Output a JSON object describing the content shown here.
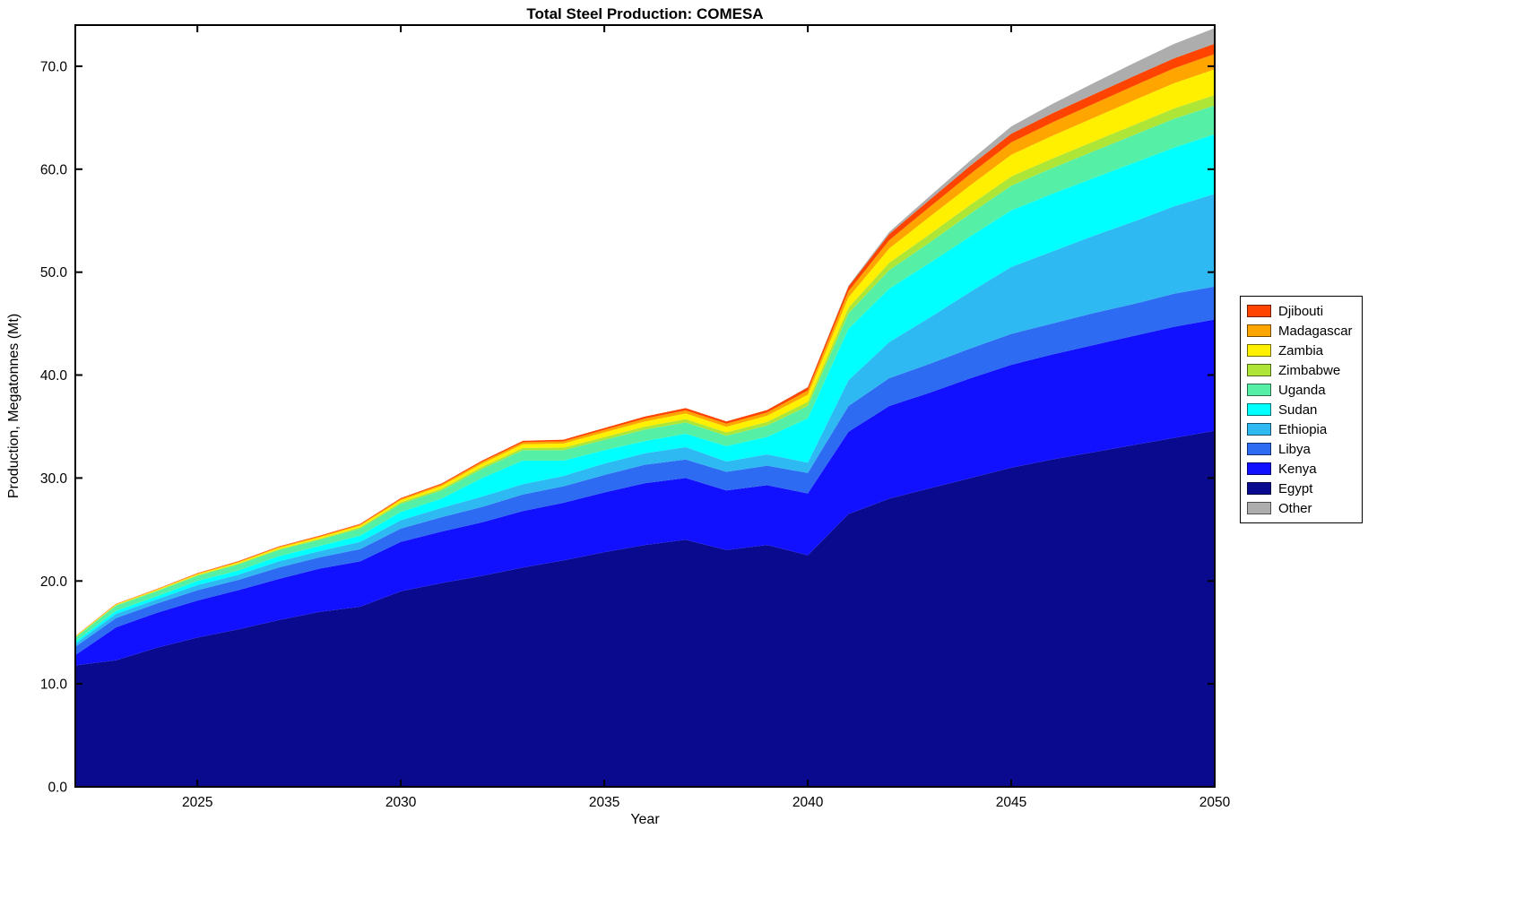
{
  "chart_data": {
    "type": "area",
    "stacked": true,
    "title": "Total Steel Production: COMESA",
    "xlabel": "Year",
    "ylabel": "Production, Megatonnes (Mt)",
    "xlim": [
      2022,
      2050
    ],
    "ylim": [
      0,
      74
    ],
    "grid": false,
    "legend_position": "right-outside",
    "xticks": [
      2025,
      2030,
      2035,
      2040,
      2045,
      2050
    ],
    "xtick_labels": [
      "2025",
      "2030",
      "2035",
      "2040",
      "2045",
      "2050"
    ],
    "yticks": [
      0,
      10,
      20,
      30,
      40,
      50,
      60,
      70
    ],
    "ytick_labels": [
      "0.0",
      "10.0",
      "20.0",
      "30.0",
      "40.0",
      "50.0",
      "60.0",
      "70.0"
    ],
    "x": [
      2022,
      2023,
      2024,
      2025,
      2026,
      2027,
      2028,
      2029,
      2030,
      2031,
      2032,
      2033,
      2034,
      2035,
      2036,
      2037,
      2038,
      2039,
      2040,
      2041,
      2042,
      2043,
      2044,
      2045,
      2046,
      2047,
      2048,
      2049,
      2050
    ],
    "series": [
      {
        "name": "Egypt",
        "color": "#0A0A8F",
        "values": [
          11.8,
          12.3,
          13.5,
          14.5,
          15.3,
          16.2,
          17.0,
          17.5,
          19.0,
          19.8,
          20.5,
          21.3,
          22.0,
          22.8,
          23.5,
          24.0,
          23.0,
          23.5,
          22.5,
          26.5,
          28.0,
          29.0,
          30.0,
          31.0,
          31.8,
          32.5,
          33.2,
          33.9,
          34.6
        ]
      },
      {
        "name": "Kenya",
        "color": "#1111FF",
        "values": [
          1.0,
          3.2,
          3.4,
          3.6,
          3.8,
          4.0,
          4.2,
          4.4,
          4.8,
          5.0,
          5.2,
          5.5,
          5.6,
          5.8,
          6.0,
          6.0,
          5.8,
          5.8,
          6.0,
          8.0,
          9.0,
          9.3,
          9.7,
          10.0,
          10.2,
          10.4,
          10.6,
          10.8,
          10.8
        ]
      },
      {
        "name": "Libya",
        "color": "#2C6BF2",
        "values": [
          0.8,
          0.9,
          0.9,
          1.0,
          1.0,
          1.1,
          1.1,
          1.2,
          1.3,
          1.4,
          1.5,
          1.6,
          1.6,
          1.7,
          1.8,
          1.8,
          1.8,
          1.9,
          2.0,
          2.5,
          2.7,
          2.8,
          2.9,
          3.0,
          3.0,
          3.1,
          3.1,
          3.2,
          3.2
        ]
      },
      {
        "name": "Ethiopia",
        "color": "#2FB9F2",
        "values": [
          0.3,
          0.4,
          0.4,
          0.5,
          0.5,
          0.6,
          0.6,
          0.7,
          0.8,
          0.9,
          1.0,
          1.0,
          1.0,
          1.1,
          1.1,
          1.2,
          1.0,
          1.1,
          1.0,
          2.5,
          3.5,
          4.5,
          5.5,
          6.5,
          7.0,
          7.5,
          8.0,
          8.5,
          9.0
        ]
      },
      {
        "name": "Sudan",
        "color": "#00FFFF",
        "values": [
          0.2,
          0.3,
          0.3,
          0.4,
          0.4,
          0.5,
          0.5,
          0.6,
          0.8,
          0.9,
          1.8,
          2.3,
          1.5,
          1.3,
          1.2,
          1.3,
          1.5,
          1.7,
          4.3,
          5.0,
          5.2,
          5.3,
          5.4,
          5.5,
          5.6,
          5.6,
          5.7,
          5.7,
          5.8
        ]
      },
      {
        "name": "Uganda",
        "color": "#55F0A5",
        "values": [
          0.4,
          0.5,
          0.5,
          0.5,
          0.6,
          0.6,
          0.6,
          0.7,
          0.8,
          0.8,
          0.9,
          1.0,
          1.0,
          1.0,
          1.1,
          1.1,
          1.0,
          1.1,
          1.2,
          1.5,
          1.8,
          2.0,
          2.2,
          2.4,
          2.5,
          2.6,
          2.7,
          2.8,
          2.8
        ]
      },
      {
        "name": "Zimbabwe",
        "color": "#AEE637",
        "values": [
          0.05,
          0.06,
          0.07,
          0.08,
          0.09,
          0.1,
          0.1,
          0.12,
          0.15,
          0.17,
          0.2,
          0.22,
          0.25,
          0.28,
          0.3,
          0.32,
          0.33,
          0.35,
          0.4,
          0.55,
          0.7,
          0.8,
          0.85,
          0.9,
          0.92,
          0.95,
          0.97,
          1.0,
          1.0
        ]
      },
      {
        "name": "Zambia",
        "color": "#FFF000",
        "values": [
          0.05,
          0.06,
          0.07,
          0.08,
          0.1,
          0.12,
          0.14,
          0.16,
          0.2,
          0.25,
          0.3,
          0.35,
          0.4,
          0.45,
          0.5,
          0.55,
          0.55,
          0.6,
          0.7,
          1.0,
          1.4,
          1.7,
          1.9,
          2.1,
          2.2,
          2.3,
          2.4,
          2.45,
          2.5
        ]
      },
      {
        "name": "Madagascar",
        "color": "#FFA500",
        "values": [
          0.03,
          0.04,
          0.05,
          0.06,
          0.07,
          0.08,
          0.09,
          0.1,
          0.12,
          0.15,
          0.18,
          0.2,
          0.22,
          0.25,
          0.28,
          0.3,
          0.3,
          0.32,
          0.4,
          0.6,
          0.8,
          0.95,
          1.1,
          1.2,
          1.3,
          1.35,
          1.4,
          1.45,
          1.5
        ]
      },
      {
        "name": "Djibouti",
        "color": "#FF4400",
        "values": [
          0.02,
          0.03,
          0.03,
          0.04,
          0.05,
          0.05,
          0.06,
          0.07,
          0.08,
          0.1,
          0.12,
          0.14,
          0.16,
          0.18,
          0.2,
          0.22,
          0.22,
          0.24,
          0.3,
          0.45,
          0.6,
          0.7,
          0.8,
          0.85,
          0.9,
          0.92,
          0.95,
          0.97,
          1.0
        ]
      },
      {
        "name": "Other",
        "color": "#ADADAD",
        "values": [
          0,
          0,
          0,
          0,
          0,
          0,
          0,
          0,
          0,
          0,
          0,
          0,
          0,
          0,
          0,
          0,
          0,
          0,
          0.05,
          0.1,
          0.2,
          0.35,
          0.5,
          0.7,
          0.9,
          1.1,
          1.25,
          1.4,
          1.5
        ]
      }
    ],
    "legend_order": [
      "Djibouti",
      "Madagascar",
      "Zambia",
      "Zimbabwe",
      "Uganda",
      "Sudan",
      "Ethiopia",
      "Libya",
      "Kenya",
      "Egypt",
      "Other"
    ]
  },
  "style": {
    "axis_color": "#000000",
    "text_color": "#000000",
    "background": "#FFFFFF"
  }
}
